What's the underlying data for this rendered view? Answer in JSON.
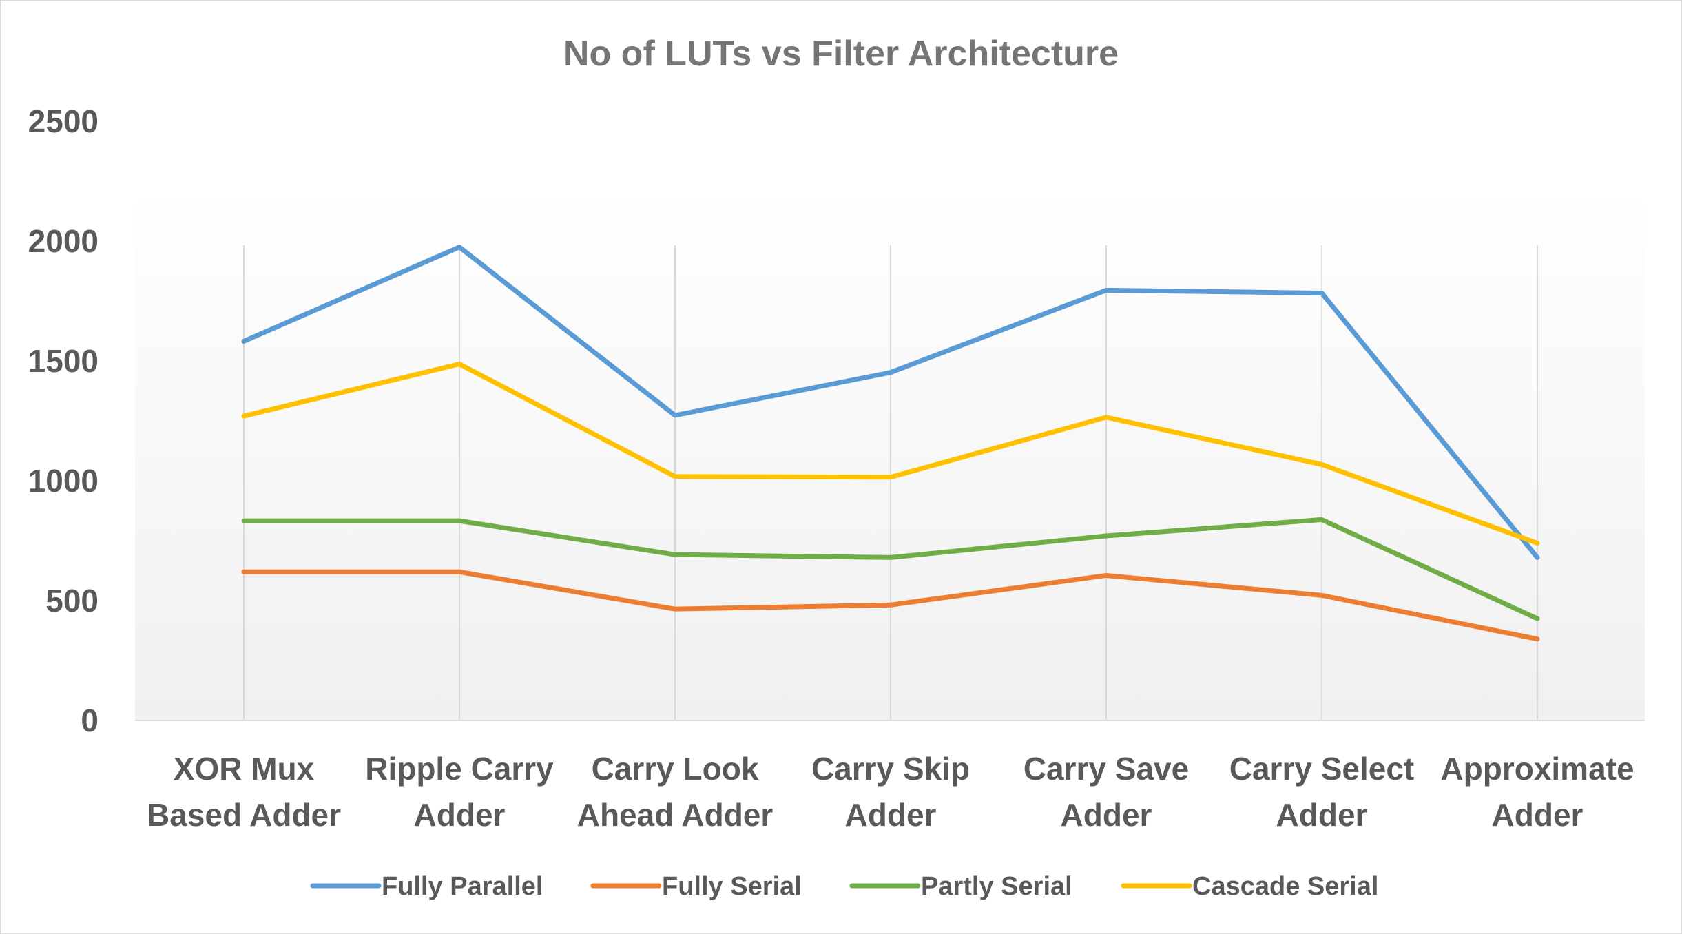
{
  "chart_data": {
    "type": "line",
    "title": "No of LUTs vs Filter Architecture",
    "xlabel": "",
    "ylabel": "",
    "ylim": [
      0,
      2500
    ],
    "yticks": [
      "0",
      "500",
      "1000",
      "1500",
      "2000",
      "2500"
    ],
    "categories": [
      [
        "XOR Mux",
        "Based Adder"
      ],
      [
        "Ripple Carry",
        "Adder"
      ],
      [
        "Carry Look",
        "Ahead Adder"
      ],
      [
        "Carry Skip",
        "Adder"
      ],
      [
        "Carry Save",
        "Adder"
      ],
      [
        "Carry Select",
        "Adder"
      ],
      [
        "Approximate",
        "Adder"
      ]
    ],
    "series": [
      {
        "name": "Fully Parallel",
        "color": "#5B9BD5",
        "values": [
          1582,
          1975,
          1273,
          1452,
          1795,
          1783,
          680
        ]
      },
      {
        "name": "Fully Serial",
        "color": "#ED7D31",
        "values": [
          620,
          620,
          465,
          482,
          605,
          522,
          340
        ]
      },
      {
        "name": "Partly Serial",
        "color": "#70AD47",
        "values": [
          833,
          833,
          692,
          680,
          770,
          838,
          425
        ]
      },
      {
        "name": "Cascade Serial",
        "color": "#FFC000",
        "values": [
          1270,
          1487,
          1018,
          1015,
          1265,
          1068,
          740
        ]
      }
    ],
    "grid": "vertical lines at category positions",
    "legend_position": "bottom",
    "background": "light gray gradient plot area"
  }
}
